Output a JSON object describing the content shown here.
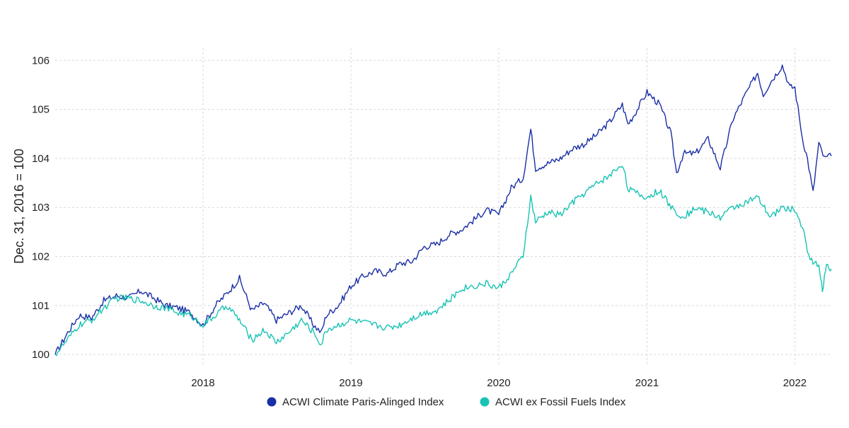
{
  "chart_data": {
    "type": "line",
    "title": "",
    "xlabel": "",
    "ylabel": "Dec. 31, 2016 = 100",
    "xlim": [
      "2017-01-01",
      "2022-04-01"
    ],
    "ylim": [
      99.8,
      106.25
    ],
    "y_ticks": [
      100,
      101,
      102,
      103,
      104,
      105,
      106
    ],
    "x_ticks": [
      {
        "label": "2018",
        "date": "2018-01-01"
      },
      {
        "label": "2019",
        "date": "2019-01-01"
      },
      {
        "label": "2020",
        "date": "2020-01-01"
      },
      {
        "label": "2021",
        "date": "2021-01-01"
      },
      {
        "label": "2022",
        "date": "2022-01-01"
      }
    ],
    "grid": true,
    "legend_position": "bottom-center",
    "series": [
      {
        "name": "ACWI Climate Paris-Alinged Index",
        "color": "#1a2ea6",
        "points": [
          [
            "2017-01-01",
            100.0
          ],
          [
            "2017-02-01",
            100.45
          ],
          [
            "2017-03-01",
            100.8
          ],
          [
            "2017-04-01",
            100.75
          ],
          [
            "2017-05-01",
            101.1
          ],
          [
            "2017-06-01",
            101.2
          ],
          [
            "2017-07-01",
            101.15
          ],
          [
            "2017-08-01",
            101.3
          ],
          [
            "2017-09-01",
            101.15
          ],
          [
            "2017-10-01",
            101.0
          ],
          [
            "2017-11-01",
            100.95
          ],
          [
            "2017-12-01",
            100.85
          ],
          [
            "2018-01-01",
            100.6
          ],
          [
            "2018-02-01",
            101.0
          ],
          [
            "2018-03-01",
            101.25
          ],
          [
            "2018-04-01",
            101.55
          ],
          [
            "2018-05-01",
            100.9
          ],
          [
            "2018-06-01",
            101.05
          ],
          [
            "2018-07-01",
            100.7
          ],
          [
            "2018-08-01",
            100.85
          ],
          [
            "2018-09-01",
            101.0
          ],
          [
            "2018-10-01",
            100.6
          ],
          [
            "2018-10-20",
            100.45
          ],
          [
            "2018-11-01",
            100.8
          ],
          [
            "2018-12-01",
            101.0
          ],
          [
            "2019-01-01",
            101.4
          ],
          [
            "2019-02-01",
            101.6
          ],
          [
            "2019-03-01",
            101.7
          ],
          [
            "2019-04-01",
            101.65
          ],
          [
            "2019-05-01",
            101.85
          ],
          [
            "2019-06-01",
            101.9
          ],
          [
            "2019-07-01",
            102.2
          ],
          [
            "2019-08-01",
            102.25
          ],
          [
            "2019-09-01",
            102.45
          ],
          [
            "2019-10-01",
            102.55
          ],
          [
            "2019-11-01",
            102.75
          ],
          [
            "2019-12-01",
            102.95
          ],
          [
            "2020-01-01",
            102.85
          ],
          [
            "2020-02-01",
            103.4
          ],
          [
            "2020-03-01",
            103.6
          ],
          [
            "2020-03-20",
            104.6
          ],
          [
            "2020-04-01",
            103.8
          ],
          [
            "2020-05-01",
            103.9
          ],
          [
            "2020-06-01",
            104.0
          ],
          [
            "2020-07-01",
            104.2
          ],
          [
            "2020-08-01",
            104.3
          ],
          [
            "2020-09-01",
            104.5
          ],
          [
            "2020-10-01",
            104.75
          ],
          [
            "2020-11-01",
            105.1
          ],
          [
            "2020-11-15",
            104.7
          ],
          [
            "2020-12-01",
            104.9
          ],
          [
            "2021-01-01",
            105.35
          ],
          [
            "2021-02-01",
            105.1
          ],
          [
            "2021-03-01",
            104.5
          ],
          [
            "2021-03-15",
            103.7
          ],
          [
            "2021-04-01",
            104.1
          ],
          [
            "2021-05-01",
            104.1
          ],
          [
            "2021-06-01",
            104.4
          ],
          [
            "2021-07-01",
            103.8
          ],
          [
            "2021-08-01",
            104.8
          ],
          [
            "2021-09-01",
            105.3
          ],
          [
            "2021-10-01",
            105.75
          ],
          [
            "2021-10-15",
            105.3
          ],
          [
            "2021-11-01",
            105.55
          ],
          [
            "2021-12-01",
            105.9
          ],
          [
            "2021-12-20",
            105.45
          ],
          [
            "2022-01-01",
            105.45
          ],
          [
            "2022-01-20",
            104.4
          ],
          [
            "2022-02-01",
            104.0
          ],
          [
            "2022-02-15",
            103.3
          ],
          [
            "2022-03-01",
            104.3
          ],
          [
            "2022-03-15",
            104.0
          ],
          [
            "2022-04-01",
            104.05
          ]
        ]
      },
      {
        "name": "ACWI ex Fossil Fuels Index",
        "color": "#18c3b4",
        "points": [
          [
            "2017-01-01",
            100.0
          ],
          [
            "2017-02-01",
            100.3
          ],
          [
            "2017-03-01",
            100.6
          ],
          [
            "2017-04-01",
            100.7
          ],
          [
            "2017-05-01",
            100.95
          ],
          [
            "2017-06-01",
            101.15
          ],
          [
            "2017-07-01",
            101.15
          ],
          [
            "2017-08-01",
            101.1
          ],
          [
            "2017-09-01",
            101.0
          ],
          [
            "2017-10-01",
            100.95
          ],
          [
            "2017-11-01",
            100.85
          ],
          [
            "2017-12-01",
            100.8
          ],
          [
            "2018-01-01",
            100.6
          ],
          [
            "2018-02-01",
            100.8
          ],
          [
            "2018-03-01",
            101.0
          ],
          [
            "2018-04-01",
            100.7
          ],
          [
            "2018-05-01",
            100.3
          ],
          [
            "2018-06-01",
            100.5
          ],
          [
            "2018-07-01",
            100.25
          ],
          [
            "2018-08-01",
            100.45
          ],
          [
            "2018-09-01",
            100.7
          ],
          [
            "2018-10-01",
            100.45
          ],
          [
            "2018-10-20",
            100.2
          ],
          [
            "2018-11-01",
            100.5
          ],
          [
            "2018-12-01",
            100.6
          ],
          [
            "2019-01-01",
            100.7
          ],
          [
            "2019-02-01",
            100.65
          ],
          [
            "2019-03-01",
            100.6
          ],
          [
            "2019-04-01",
            100.55
          ],
          [
            "2019-05-01",
            100.6
          ],
          [
            "2019-06-01",
            100.75
          ],
          [
            "2019-07-01",
            100.85
          ],
          [
            "2019-08-01",
            100.9
          ],
          [
            "2019-09-01",
            101.1
          ],
          [
            "2019-10-01",
            101.35
          ],
          [
            "2019-11-01",
            101.4
          ],
          [
            "2019-12-01",
            101.45
          ],
          [
            "2020-01-01",
            101.35
          ],
          [
            "2020-02-01",
            101.65
          ],
          [
            "2020-03-01",
            102.0
          ],
          [
            "2020-03-20",
            103.2
          ],
          [
            "2020-04-01",
            102.7
          ],
          [
            "2020-05-01",
            102.9
          ],
          [
            "2020-06-01",
            102.85
          ],
          [
            "2020-07-01",
            103.1
          ],
          [
            "2020-08-01",
            103.3
          ],
          [
            "2020-09-01",
            103.5
          ],
          [
            "2020-10-01",
            103.65
          ],
          [
            "2020-11-01",
            103.9
          ],
          [
            "2020-11-15",
            103.4
          ],
          [
            "2020-12-01",
            103.3
          ],
          [
            "2021-01-01",
            103.2
          ],
          [
            "2021-02-01",
            103.35
          ],
          [
            "2021-03-01",
            103.0
          ],
          [
            "2021-04-01",
            102.8
          ],
          [
            "2021-05-01",
            103.0
          ],
          [
            "2021-06-01",
            102.9
          ],
          [
            "2021-07-01",
            102.8
          ],
          [
            "2021-08-01",
            103.0
          ],
          [
            "2021-09-01",
            103.1
          ],
          [
            "2021-10-01",
            103.2
          ],
          [
            "2021-11-01",
            102.8
          ],
          [
            "2021-12-01",
            103.0
          ],
          [
            "2022-01-01",
            102.95
          ],
          [
            "2022-01-20",
            102.6
          ],
          [
            "2022-02-01",
            102.1
          ],
          [
            "2022-02-15",
            101.9
          ],
          [
            "2022-03-01",
            101.8
          ],
          [
            "2022-03-10",
            101.3
          ],
          [
            "2022-03-20",
            101.85
          ],
          [
            "2022-04-01",
            101.75
          ]
        ]
      }
    ]
  }
}
